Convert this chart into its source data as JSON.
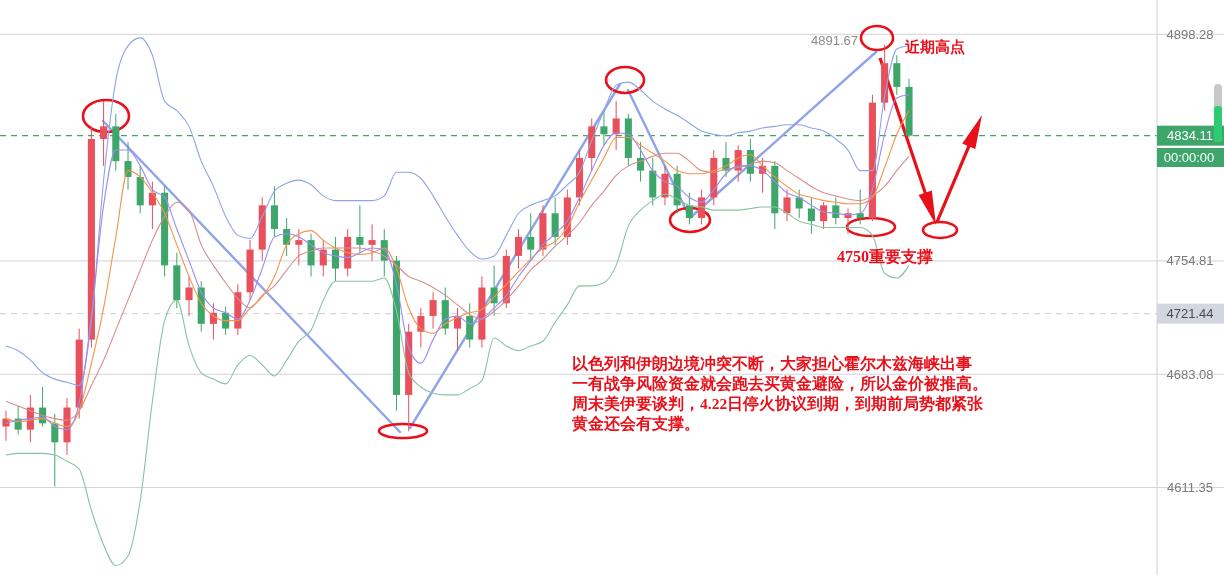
{
  "chart_data": {
    "type": "candlestick",
    "categories": [
      null,
      null,
      null,
      null,
      null,
      null,
      null,
      null,
      null,
      null,
      null,
      null,
      null,
      null,
      null,
      null,
      null,
      null,
      null,
      null,
      null,
      null,
      null,
      null,
      null,
      null,
      null,
      null,
      null,
      null,
      null,
      null,
      null,
      null,
      null,
      null,
      null,
      null,
      null,
      null,
      null,
      null,
      null,
      null,
      null,
      null,
      null,
      null,
      null,
      null,
      null,
      null,
      null,
      null,
      null,
      null,
      null,
      null,
      null,
      null,
      null,
      null,
      null,
      null,
      null,
      null,
      null,
      null,
      null,
      null,
      null,
      null,
      null,
      null,
      null
    ],
    "ohlc": [
      [
        4650,
        4660,
        4641,
        4655
      ],
      [
        4655,
        4663,
        4645,
        4648
      ],
      [
        4648,
        4670,
        4640,
        4662
      ],
      [
        4662,
        4675,
        4650,
        4652
      ],
      [
        4652,
        4658,
        4612,
        4640
      ],
      [
        4640,
        4668,
        4632,
        4662
      ],
      [
        4662,
        4712,
        4655,
        4705
      ],
      [
        4705,
        4840,
        4700,
        4832
      ],
      [
        4832,
        4856,
        4815,
        4840
      ],
      [
        4840,
        4848,
        4812,
        4818
      ],
      [
        4818,
        4830,
        4800,
        4808
      ],
      [
        4808,
        4815,
        4785,
        4790
      ],
      [
        4790,
        4805,
        4775,
        4798
      ],
      [
        4798,
        4802,
        4745,
        4752
      ],
      [
        4752,
        4760,
        4725,
        4730
      ],
      [
        4730,
        4745,
        4720,
        4738
      ],
      [
        4738,
        4742,
        4710,
        4715
      ],
      [
        4715,
        4728,
        4705,
        4722
      ],
      [
        4722,
        4726,
        4708,
        4712
      ],
      [
        4712,
        4740,
        4708,
        4735
      ],
      [
        4735,
        4768,
        4730,
        4762
      ],
      [
        4762,
        4795,
        4755,
        4790
      ],
      [
        4790,
        4802,
        4770,
        4775
      ],
      [
        4775,
        4782,
        4758,
        4765
      ],
      [
        4765,
        4775,
        4752,
        4768
      ],
      [
        4768,
        4772,
        4745,
        4752
      ],
      [
        4752,
        4768,
        4745,
        4762
      ],
      [
        4762,
        4770,
        4742,
        4750
      ],
      [
        4750,
        4775,
        4745,
        4770
      ],
      [
        4770,
        4790,
        4760,
        4765
      ],
      [
        4765,
        4778,
        4755,
        4768
      ],
      [
        4768,
        4775,
        4745,
        4755
      ],
      [
        4755,
        4758,
        4660,
        4670
      ],
      [
        4670,
        4715,
        4647,
        4710
      ],
      [
        4710,
        4725,
        4700,
        4720
      ],
      [
        4720,
        4735,
        4712,
        4730
      ],
      [
        4730,
        4738,
        4708,
        4712
      ],
      [
        4712,
        4725,
        4698,
        4720
      ],
      [
        4720,
        4728,
        4700,
        4705
      ],
      [
        4705,
        4745,
        4700,
        4738
      ],
      [
        4738,
        4752,
        4720,
        4728
      ],
      [
        4728,
        4762,
        4725,
        4758
      ],
      [
        4758,
        4775,
        4750,
        4770
      ],
      [
        4770,
        4785,
        4755,
        4762
      ],
      [
        4762,
        4790,
        4758,
        4785
      ],
      [
        4785,
        4795,
        4765,
        4770
      ],
      [
        4770,
        4800,
        4765,
        4795
      ],
      [
        4795,
        4825,
        4790,
        4820
      ],
      [
        4820,
        4845,
        4812,
        4840
      ],
      [
        4840,
        4850,
        4828,
        4835
      ],
      [
        4835,
        4856,
        4825,
        4845
      ],
      [
        4845,
        4848,
        4815,
        4820
      ],
      [
        4820,
        4830,
        4805,
        4812
      ],
      [
        4812,
        4820,
        4790,
        4795
      ],
      [
        4795,
        4815,
        4790,
        4810
      ],
      [
        4810,
        4815,
        4785,
        4790
      ],
      [
        4790,
        4798,
        4778,
        4782
      ],
      [
        4782,
        4800,
        4778,
        4795
      ],
      [
        4795,
        4825,
        4790,
        4820
      ],
      [
        4820,
        4830,
        4808,
        4812
      ],
      [
        4812,
        4828,
        4805,
        4825
      ],
      [
        4825,
        4832,
        4805,
        4810
      ],
      [
        4810,
        4820,
        4798,
        4815
      ],
      [
        4815,
        4818,
        4775,
        4785
      ],
      [
        4785,
        4800,
        4780,
        4795
      ],
      [
        4795,
        4800,
        4782,
        4788
      ],
      [
        4788,
        4795,
        4772,
        4780
      ],
      [
        4780,
        4792,
        4775,
        4790
      ],
      [
        4790,
        4795,
        4778,
        4782
      ],
      [
        4782,
        4788,
        4772,
        4785
      ],
      [
        4785,
        4800,
        4778,
        4782
      ],
      [
        4782,
        4860,
        4780,
        4855
      ],
      [
        4855,
        4891.67,
        4850,
        4880
      ],
      [
        4880,
        4885,
        4860,
        4865
      ],
      [
        4865,
        4870,
        4833,
        4834.11
      ]
    ],
    "colors": [
      "#e8505b",
      "#3fa66b",
      "#e8505b",
      "#3fa66b",
      "#3fa66b",
      "#e8505b",
      "#e8505b",
      "#e8505b",
      "#e8505b",
      "#3fa66b",
      "#3fa66b",
      "#3fa66b",
      "#e8505b",
      "#3fa66b",
      "#3fa66b",
      "#e8505b",
      "#3fa66b",
      "#e8505b",
      "#3fa66b",
      "#e8505b",
      "#e8505b",
      "#e8505b",
      "#3fa66b",
      "#3fa66b",
      "#e8505b",
      "#3fa66b",
      "#e8505b",
      "#3fa66b",
      "#e8505b",
      "#3fa66b",
      "#e8505b",
      "#3fa66b",
      "#3fa66b",
      "#e8505b",
      "#e8505b",
      "#e8505b",
      "#3fa66b",
      "#e8505b",
      "#3fa66b",
      "#e8505b",
      "#3fa66b",
      "#e8505b",
      "#e8505b",
      "#3fa66b",
      "#e8505b",
      "#3fa66b",
      "#e8505b",
      "#e8505b",
      "#e8505b",
      "#3fa66b",
      "#e8505b",
      "#3fa66b",
      "#3fa66b",
      "#3fa66b",
      "#e8505b",
      "#3fa66b",
      "#3fa66b",
      "#e8505b",
      "#e8505b",
      "#3fa66b",
      "#e8505b",
      "#3fa66b",
      "#e8505b",
      "#3fa66b",
      "#e8505b",
      "#3fa66b",
      "#3fa66b",
      "#e8505b",
      "#3fa66b",
      "#e8505b",
      "#3fa66b",
      "#e8505b",
      "#e8505b",
      "#3fa66b",
      "#3fa66b"
    ],
    "series": [
      {
        "type": "line",
        "color": "#8ea4ea",
        "values": [
          4701,
          4698,
          4692,
          4684,
          4680,
          4678,
          4676,
          4717,
          4806,
          4869,
          4891,
          4896,
          4885,
          4856,
          4850,
          4840,
          4818,
          4802,
          4783,
          4771,
          4769,
          4783,
          4799,
          4804,
          4806,
          4803,
          4796,
          4793,
          4793,
          4793,
          4793,
          4796,
          4811,
          4811,
          4807,
          4796,
          4783,
          4771,
          4761,
          4756,
          4758,
          4771,
          4785,
          4790,
          4793,
          4796,
          4803,
          4811,
          4831,
          4850,
          4866,
          4868,
          4863,
          4856,
          4851,
          4847,
          4842,
          4837,
          4835,
          4834,
          4836,
          4837,
          4839,
          4840,
          4841,
          4841,
          4839,
          4837,
          4832,
          4825,
          4812,
          4812,
          4859,
          4889,
          4891
        ]
      },
      {
        "type": "line",
        "color": "#d98c8c",
        "values": [
          4666,
          4663,
          4660,
          4657,
          4655,
          4654,
          4660,
          4676,
          4692,
          4711,
          4730,
          4749,
          4768,
          4783,
          4792,
          4787,
          4765,
          4752,
          4741,
          4731,
          4725,
          4733,
          4739,
          4749,
          4758,
          4761,
          4763,
          4763,
          4763,
          4763,
          4761,
          4758,
          4752,
          4745,
          4742,
          4738,
          4733,
          4727,
          4721,
          4718,
          4723,
          4730,
          4739,
          4749,
          4756,
          4764,
          4771,
          4779,
          4790,
          4799,
          4809,
          4815,
          4818,
          4821,
          4823,
          4823,
          4818,
          4812,
          4811,
          4813,
          4814,
          4816,
          4818,
          4817,
          4812,
          4807,
          4802,
          4798,
          4796,
          4794,
          4793,
          4796,
          4802,
          4812,
          4821
        ]
      },
      {
        "type": "line",
        "color": "#86c4a0",
        "values": [
          4632,
          4633,
          4633,
          4633,
          4632,
          4628,
          4623,
          4597,
          4575,
          4562,
          4568,
          4603,
          4666,
          4717,
          4730,
          4701,
          4684,
          4680,
          4677,
          4689,
          4695,
          4689,
          4682,
          4692,
          4704,
          4711,
          4730,
          4742,
          4742,
          4742,
          4742,
          4744,
          4723,
          4684,
          4675,
          4671,
          4670,
          4670,
          4674,
          4679,
          4706,
          4701,
          4698,
          4701,
          4704,
          4716,
          4727,
          4739,
          4739,
          4741,
          4752,
          4777,
          4787,
          4793,
          4797,
          4794,
          4790,
          4789,
          4787,
          4787,
          4787,
          4788,
          4789,
          4789,
          4785,
          4780,
          4778,
          4776,
          4776,
          4776,
          4776,
          4771,
          4747,
          4744,
          4752
        ]
      },
      {
        "type": "line",
        "color": "#f5934a",
        "values": [
          4655,
          4653,
          4654,
          4655,
          4652,
          4650,
          4660,
          4690,
          4725,
          4770,
          4812,
          4808,
          4798,
          4785,
          4765,
          4745,
          4728,
          4720,
          4717,
          4717,
          4725,
          4732,
          4745,
          4765,
          4772,
          4774,
          4768,
          4763,
          4760,
          4759,
          4760,
          4763,
          4750,
          4725,
          4712,
          4709,
          4715,
          4719,
          4722,
          4724,
          4732,
          4740,
          4748,
          4756,
          4763,
          4767,
          4776,
          4792,
          4806,
          4820,
          4833,
          4833,
          4828,
          4823,
          4818,
          4812,
          4810,
          4810,
          4812,
          4815,
          4820,
          4822,
          4815,
          4808,
          4802,
          4797,
          4795,
          4793,
          4792,
          4791,
          4791,
          4795,
          4814,
          4835,
          4850
        ]
      },
      {
        "type": "line",
        "color": "#9b8df2",
        "values": [
          4652,
          4654,
          4655,
          4656,
          4650,
          4648,
          4665,
          4720,
          4790,
          4825,
          4825,
          4815,
          4800,
          4795,
          4775,
          4755,
          4735,
          4725,
          4722,
          4718,
          4730,
          4750,
          4770,
          4772,
          4770,
          4765,
          4760,
          4758,
          4757,
          4760,
          4763,
          4762,
          4740,
          4700,
          4690,
          4705,
          4718,
          4720,
          4715,
          4718,
          4725,
          4733,
          4745,
          4755,
          4765,
          4772,
          4780,
          4795,
          4812,
          4828,
          4836,
          4835,
          4825,
          4812,
          4805,
          4802,
          4795,
          4792,
          4800,
          4810,
          4815,
          4815,
          4812,
          4805,
          4798,
          4795,
          4790,
          4786,
          4785,
          4784,
          4785,
          4800,
          4835,
          4858,
          4860
        ]
      }
    ],
    "ylim": [
      4556,
      4920
    ],
    "yticks": [
      4611.35,
      4683.08,
      4754.81,
      4898.28
    ],
    "grid": "y",
    "tick_labels": "y",
    "ref_lines": [
      {
        "axis": "y",
        "value": 4834.11,
        "label": "4834.11",
        "color": "#3fa66b",
        "line_style": "dashed"
      },
      {
        "axis": "y",
        "value": 4721.44,
        "label": "4721.44",
        "color": "#d4d6de",
        "line_style": "dashed"
      }
    ],
    "annotations": [
      "近期高点",
      "4750重要支撑",
      "以色列和伊朗边境冲突不断，大家担心霍尔木兹海峡出事",
      "一有战争风险资金就会跑去买黄金避险，所以金价被推高。",
      "周末美伊要谈判，4.22日停火协议到期，到期前局势都紧张",
      "黄金还会有支撑。",
      "4891.67",
      "00:00:00"
    ]
  }
}
